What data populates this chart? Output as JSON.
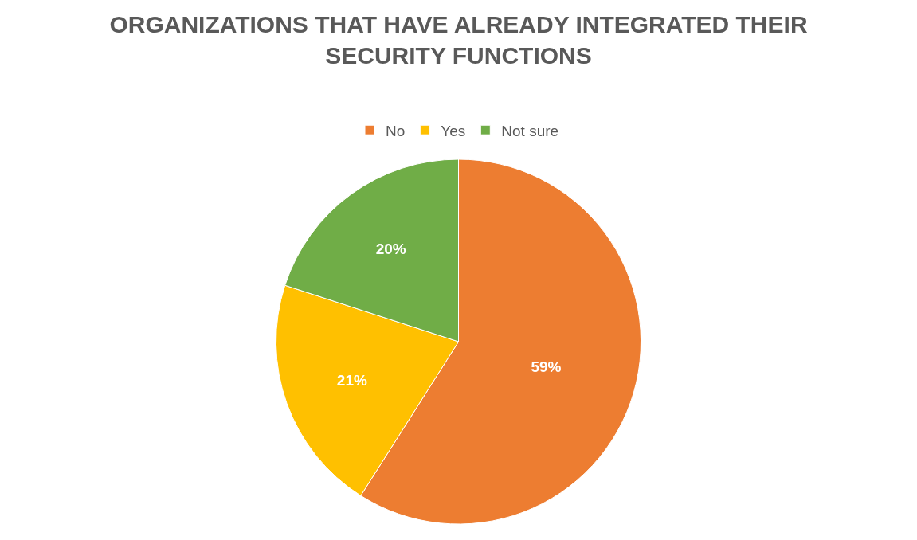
{
  "chart_data": {
    "type": "pie",
    "title": "ORGANIZATIONS THAT HAVE ALREADY INTEGRATED THEIR SECURITY FUNCTIONS",
    "categories": [
      "No",
      "Yes",
      "Not sure"
    ],
    "values": [
      59,
      21,
      20
    ],
    "colors": [
      "#ed7d31",
      "#ffc000",
      "#70ad47"
    ],
    "value_labels": [
      "59%",
      "21%",
      "20%"
    ],
    "legend": "top"
  }
}
